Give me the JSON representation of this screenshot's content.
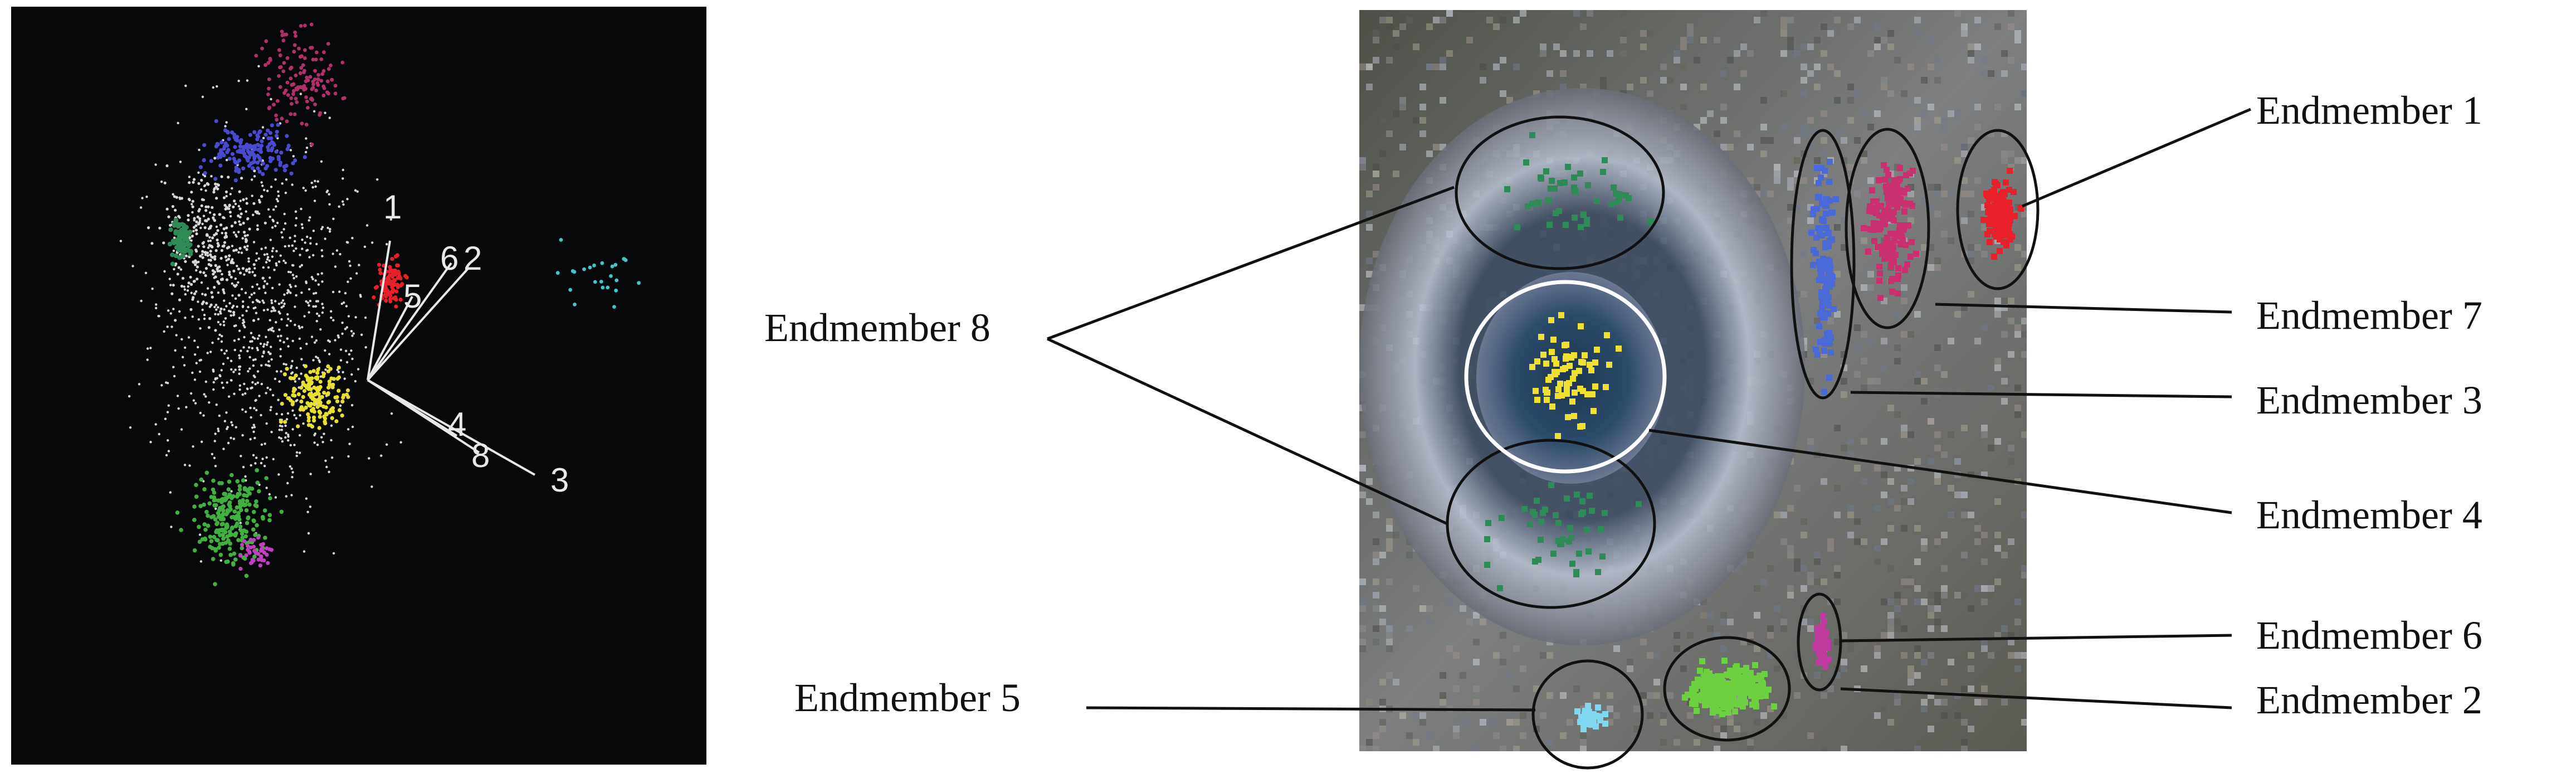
{
  "figure": {
    "scatter_panel": {
      "axis_labels": [
        "1",
        "6",
        "2",
        "5",
        "4",
        "8",
        "3"
      ],
      "clusters": [
        {
          "name": "background",
          "color": "#d8d8d8"
        },
        {
          "name": "magenta",
          "color": "#b0306a"
        },
        {
          "name": "blue",
          "color": "#4a4ad0"
        },
        {
          "name": "dark-green",
          "color": "#2e8b57"
        },
        {
          "name": "red",
          "color": "#e8202a"
        },
        {
          "name": "cyan",
          "color": "#40c8c8"
        },
        {
          "name": "yellow",
          "color": "#e8e030"
        },
        {
          "name": "green",
          "color": "#40b040"
        },
        {
          "name": "pink",
          "color": "#c040c0"
        }
      ]
    },
    "labels": {
      "em1": "Endmember 1",
      "em7": "Endmember 7",
      "em3": "Endmember 3",
      "em4": "Endmember 4",
      "em6": "Endmember 6",
      "em2": "Endmember 2",
      "em8": "Endmember 8",
      "em5": "Endmember 5"
    },
    "region_colors": {
      "em1": "#e8202a",
      "em2": "#6cd040",
      "em3": "#4a6ad8",
      "em4": "#f0e030",
      "em5": "#7fd8f0",
      "em6": "#c03aa0",
      "em7": "#c83070",
      "em8": "#2e8b57"
    }
  }
}
